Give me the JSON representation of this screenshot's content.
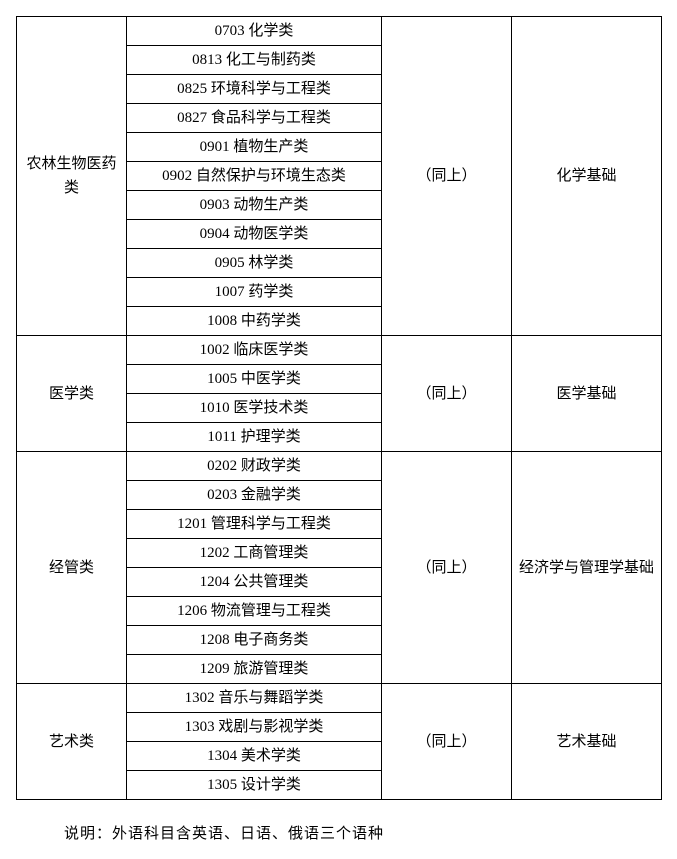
{
  "table": {
    "columns": {
      "category_width": 110,
      "major_width": 255,
      "exam_width": 130,
      "subject_width": 150
    },
    "border_color": "#000000",
    "background_color": "#ffffff",
    "text_color": "#000000",
    "fontsize": 15,
    "font_family": "SimSun",
    "groups": [
      {
        "category": "农林生物医药类",
        "majors": [
          "0703 化学类",
          "0813 化工与制药类",
          "0825 环境科学与工程类",
          "0827 食品科学与工程类",
          "0901 植物生产类",
          "0902 自然保护与环境生态类",
          "0903 动物生产类",
          "0904 动物医学类",
          "0905 林学类",
          "1007 药学类",
          "1008 中药学类"
        ],
        "exam_ref": "（同上）",
        "subject": "化学基础"
      },
      {
        "category": "医学类",
        "majors": [
          "1002 临床医学类",
          "1005 中医学类",
          "1010 医学技术类",
          "1011 护理学类"
        ],
        "exam_ref": "（同上）",
        "subject": "医学基础"
      },
      {
        "category": "经管类",
        "majors": [
          "0202 财政学类",
          "0203 金融学类",
          "1201 管理科学与工程类",
          "1202 工商管理类",
          "1204 公共管理类",
          "1206 物流管理与工程类",
          "1208 电子商务类",
          "1209 旅游管理类"
        ],
        "exam_ref": "（同上）",
        "subject": "经济学与管理学基础"
      },
      {
        "category": "艺术类",
        "majors": [
          "1302 音乐与舞蹈学类",
          "1303 戏剧与影视学类",
          "1304 美术学类",
          "1305 设计学类"
        ],
        "exam_ref": "（同上）",
        "subject": "艺术基础"
      }
    ]
  },
  "note": "说明：外语科目含英语、日语、俄语三个语种"
}
